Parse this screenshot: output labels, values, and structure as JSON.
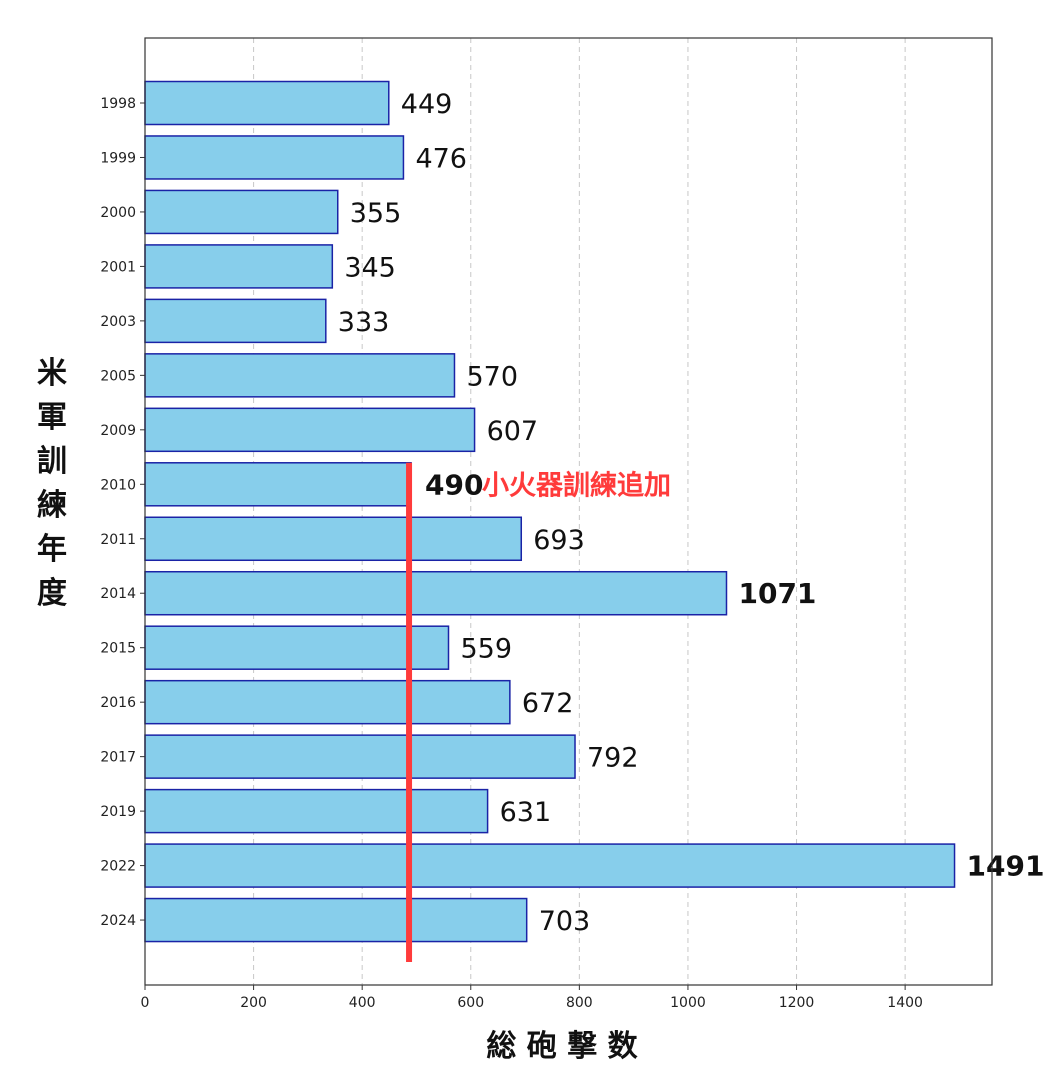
{
  "chart_data": {
    "type": "bar",
    "orientation": "horizontal",
    "title": "",
    "xlabel": "総 砲 撃 数",
    "ylabel": "米軍訓練年度",
    "xlim": [
      0,
      1560
    ],
    "xticks": [
      0,
      200,
      400,
      600,
      800,
      1000,
      1200,
      1400
    ],
    "grid": "vertical-dashed",
    "categories": [
      "1998",
      "1999",
      "2000",
      "2001",
      "2003",
      "2005",
      "2009",
      "2010",
      "2011",
      "2014",
      "2015",
      "2016",
      "2017",
      "2019",
      "2022",
      "2024"
    ],
    "values": [
      449,
      476,
      355,
      345,
      333,
      570,
      607,
      490,
      693,
      1071,
      559,
      672,
      792,
      631,
      1491,
      703
    ],
    "value_labels": [
      "449",
      "476",
      "355",
      "345",
      "333",
      "570",
      "607",
      "490",
      "693",
      "1071",
      "559",
      "672",
      "792",
      "631",
      "1491",
      "703"
    ],
    "bold_value_labels": [
      "490",
      "1071",
      "1491"
    ],
    "annotation": {
      "text": "小火器訓練追加",
      "category": "2010",
      "reference_value": 490,
      "color": "#ff3b3b"
    },
    "colors": {
      "bar_fill": "#87ceeb",
      "bar_edge": "#1a23a6",
      "reference_line": "#ff3b3b",
      "grid": "#c8c8c8",
      "axis": "#333333"
    }
  }
}
